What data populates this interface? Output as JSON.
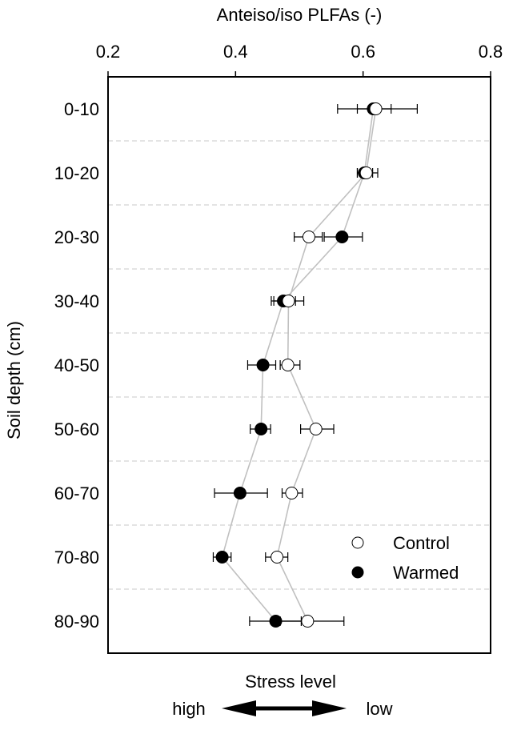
{
  "chart_data": {
    "type": "scatter",
    "orientation": "horizontal-profile",
    "title": "",
    "xlabel": "Anteiso/iso PLFAs (-)",
    "ylabel": "Soil depth (cm)",
    "xlim": [
      0.2,
      0.8
    ],
    "xticks": [
      0.2,
      0.4,
      0.6,
      0.8
    ],
    "xtick_labels": [
      "0.2",
      "0.4",
      "0.6",
      "0.8"
    ],
    "x_axis_position": "top",
    "categories": [
      "0-10",
      "10-20",
      "20-30",
      "30-40",
      "40-50",
      "50-60",
      "60-70",
      "70-80",
      "80-90"
    ],
    "grid": "dashed horizontal separators between depth classes",
    "legend_position": "bottom-right",
    "series": [
      {
        "name": "Control",
        "marker": "open-circle",
        "values": [
          0.62,
          0.605,
          0.515,
          0.483,
          0.482,
          0.526,
          0.488,
          0.465,
          0.513
        ],
        "err_low": [
          0.56,
          0.591,
          0.492,
          0.46,
          0.47,
          0.502,
          0.473,
          0.447,
          0.47
        ],
        "err_high": [
          0.685,
          0.623,
          0.536,
          0.507,
          0.501,
          0.554,
          0.505,
          0.482,
          0.57
        ]
      },
      {
        "name": "Warmed",
        "marker": "filled-circle",
        "values": [
          0.616,
          0.602,
          0.567,
          0.475,
          0.443,
          0.44,
          0.407,
          0.379,
          0.463
        ],
        "err_low": [
          0.591,
          0.591,
          0.539,
          0.456,
          0.419,
          0.423,
          0.367,
          0.365,
          0.422
        ],
        "err_high": [
          0.644,
          0.615,
          0.599,
          0.494,
          0.463,
          0.455,
          0.45,
          0.393,
          0.503
        ]
      }
    ],
    "annotation": {
      "title": "Stress level",
      "left_label": "high",
      "right_label": "low",
      "arrow": "double-headed"
    }
  },
  "colors": {
    "axis": "#000000",
    "connector_line": "#c0c0c0",
    "grid_dash": "#c8c8c8",
    "control_fill": "#ffffff",
    "warmed_fill": "#000000"
  }
}
